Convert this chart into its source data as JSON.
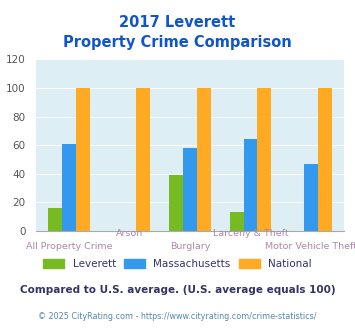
{
  "title_line1": "2017 Leverett",
  "title_line2": "Property Crime Comparison",
  "categories": [
    "All Property Crime",
    "Arson",
    "Burglary",
    "Larceny & Theft",
    "Motor Vehicle Theft"
  ],
  "leverett": [
    16,
    0,
    39,
    13,
    0
  ],
  "massachusetts": [
    61,
    0,
    58,
    64,
    47
  ],
  "national": [
    100,
    100,
    100,
    100,
    100
  ],
  "leverett_color": "#77bb22",
  "massachusetts_color": "#3399ee",
  "national_color": "#ffaa22",
  "ylim": [
    0,
    120
  ],
  "yticks": [
    0,
    20,
    40,
    60,
    80,
    100,
    120
  ],
  "background_color": "#ddeef5",
  "title_color": "#1155cc",
  "xlabel_top_color": "#aa88aa",
  "xlabel_bot_color": "#aa88aa",
  "legend_label_color": "#333366",
  "footer_text": "Compared to U.S. average. (U.S. average equals 100)",
  "copyright_text": "© 2025 CityRating.com - https://www.cityrating.com/crime-statistics/",
  "footer_color": "#333366",
  "copyright_color": "#5588aa",
  "bar_width": 0.23
}
